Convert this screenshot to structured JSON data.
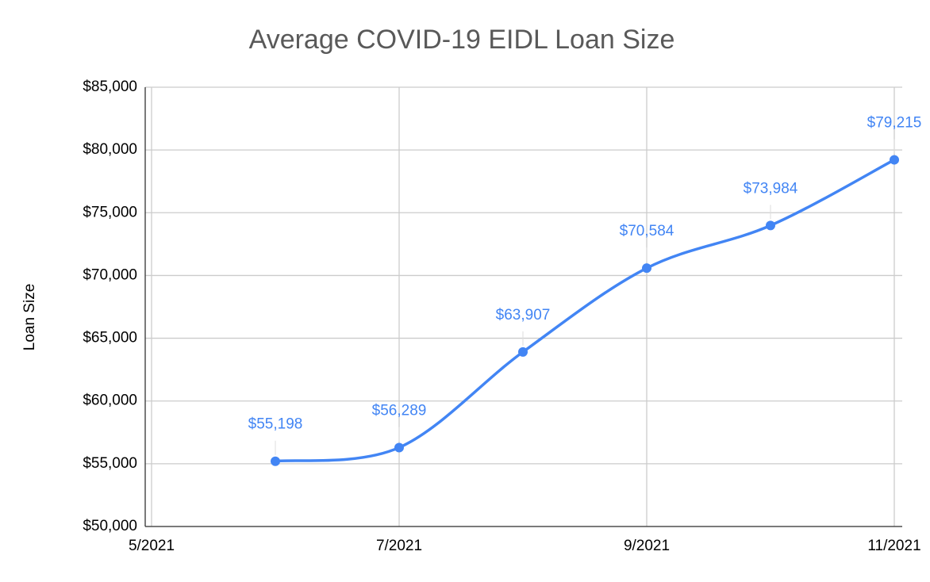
{
  "chart_data": {
    "type": "line",
    "title": "Average COVID-19 EIDL Loan Size",
    "y_label": "Loan Size",
    "x": [
      "6/2021",
      "7/2021",
      "8/2021",
      "9/2021",
      "10/2021",
      "11/2021"
    ],
    "xlim": [
      "5/2021",
      "11/2021"
    ],
    "xticks": [
      "5/2021",
      "7/2021",
      "9/2021",
      "11/2021"
    ],
    "series": [
      {
        "name": "Loan Size",
        "color": "#4285f4",
        "values": [
          55198,
          56289,
          63907,
          70584,
          73984,
          79215
        ],
        "value_labels": [
          "$55,198",
          "$56,289",
          "$63,907",
          "$70,584",
          "$73,984",
          "$79,215"
        ]
      }
    ],
    "ylim": [
      50000,
      85000
    ],
    "yticks": [
      {
        "value": 50000,
        "label": "$50,000"
      },
      {
        "value": 55000,
        "label": "$55,000"
      },
      {
        "value": 60000,
        "label": "$60,000"
      },
      {
        "value": 65000,
        "label": "$65,000"
      },
      {
        "value": 70000,
        "label": "$70,000"
      },
      {
        "value": 75000,
        "label": "$75,000"
      },
      {
        "value": 80000,
        "label": "$80,000"
      },
      {
        "value": 85000,
        "label": "$85,000"
      }
    ],
    "grid": true,
    "smooth": true
  }
}
